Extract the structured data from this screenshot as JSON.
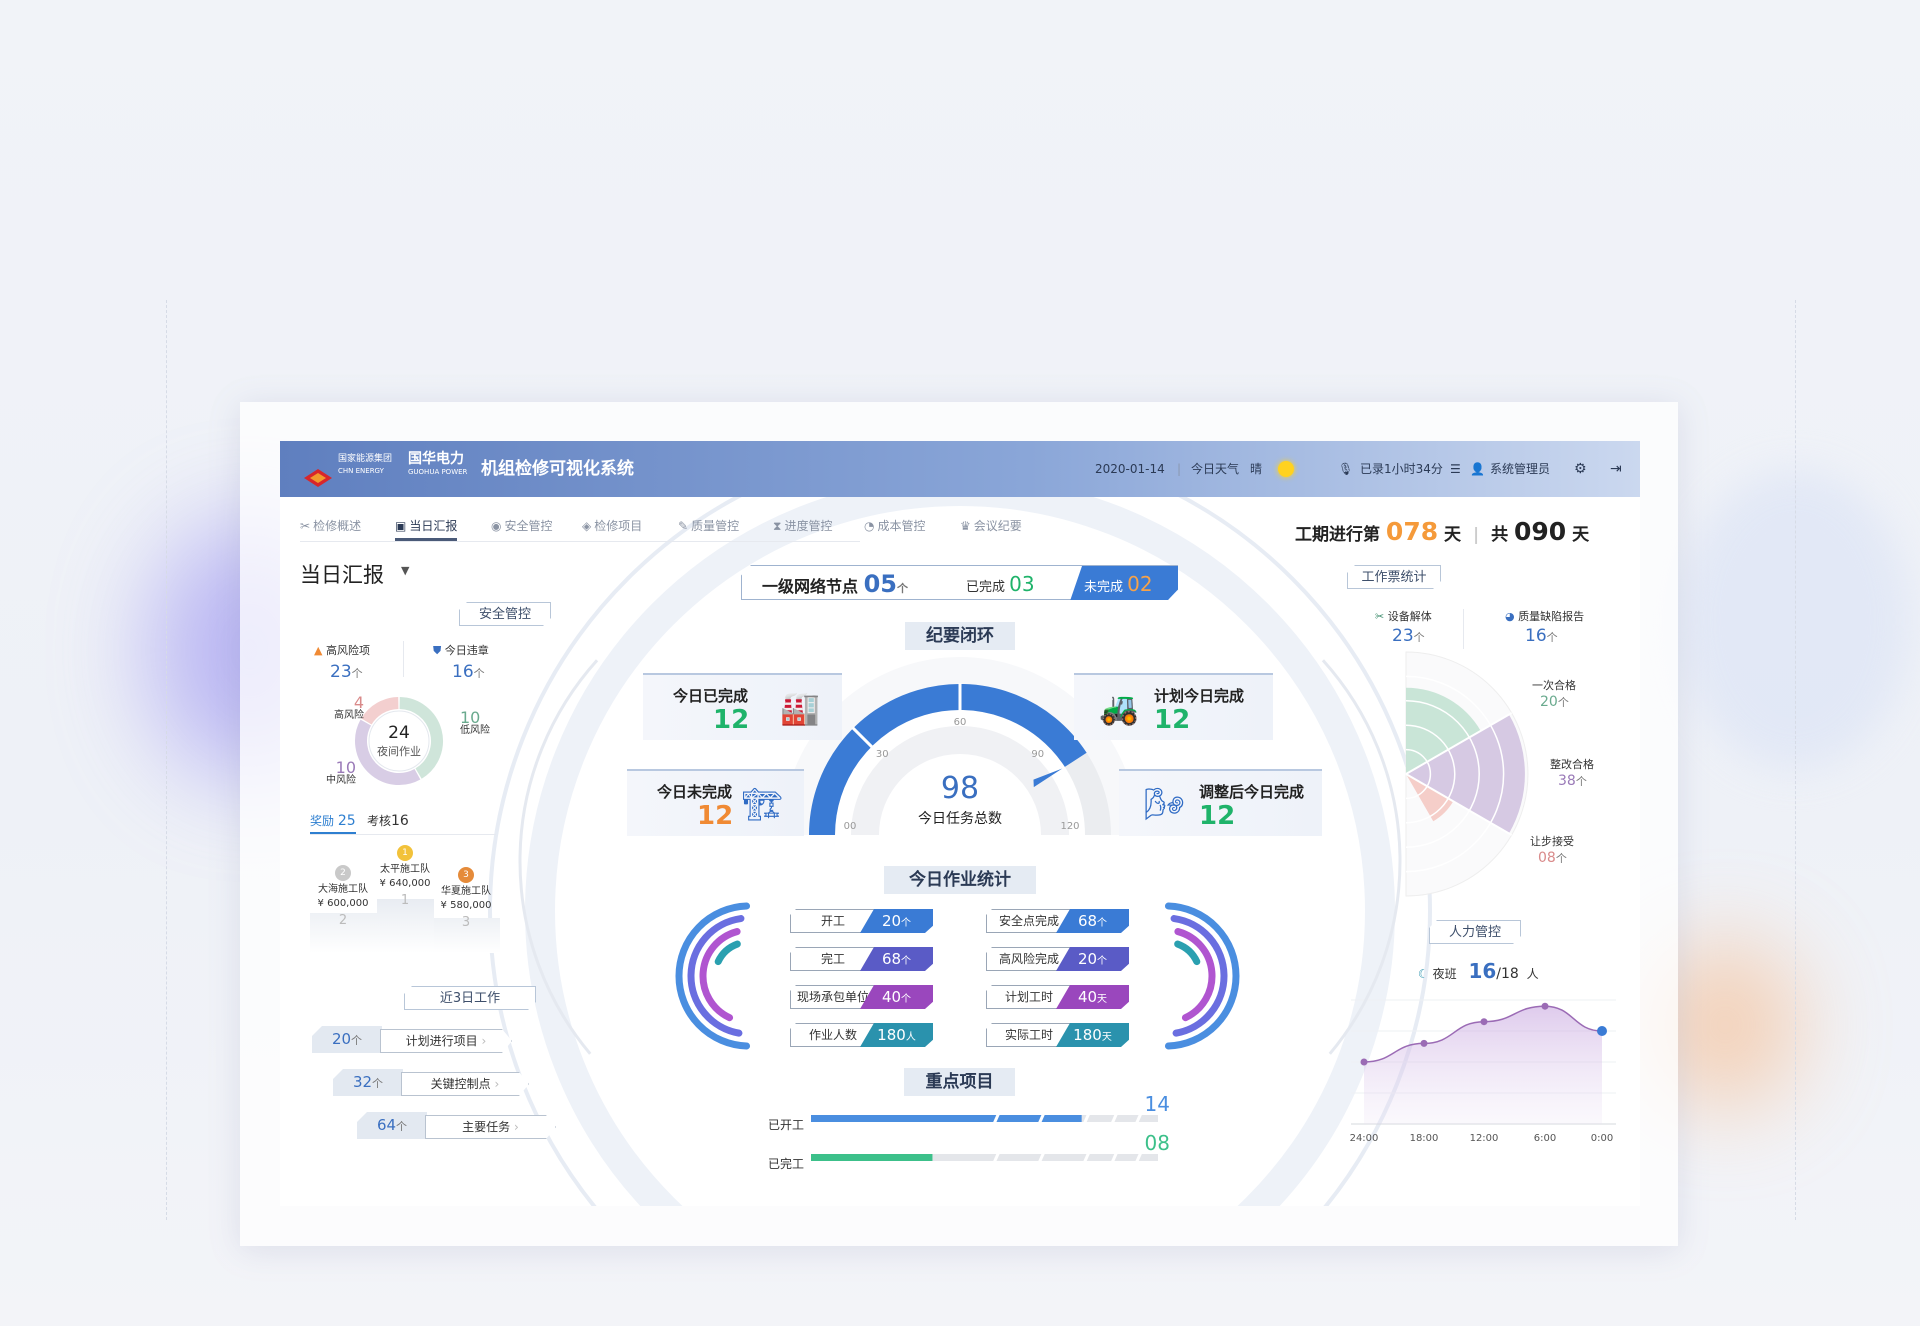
{
  "header": {
    "org_cn": "国家能源集团",
    "org_en": "CHN ENERGY",
    "brand_cn": "国华电力",
    "brand_en": "GUOHUA POWER",
    "title": "机组检修可视化系统",
    "date": "2020-01-14",
    "weather_label": "今日天气",
    "weather": "晴",
    "weather_icon": "sun-icon",
    "recording": "已录1小时34分",
    "user": "系统管理员"
  },
  "nav": {
    "tabs": [
      {
        "label": "检修概述",
        "icon": "✂",
        "active": false
      },
      {
        "label": "当日汇报",
        "icon": "▣",
        "active": true
      },
      {
        "label": "安全管控",
        "icon": "◉",
        "active": false
      },
      {
        "label": "检修项目",
        "icon": "◈",
        "active": false
      },
      {
        "label": "质量管控",
        "icon": "✎",
        "active": false
      },
      {
        "label": "进度管控",
        "icon": "⧗",
        "active": false
      },
      {
        "label": "成本管控",
        "icon": "◔",
        "active": false
      },
      {
        "label": "会议纪要",
        "icon": "♛",
        "active": false
      }
    ]
  },
  "period": {
    "prefix": "工期进行第",
    "current": "078",
    "unit": "天",
    "total_prefix": "共",
    "total": "090",
    "total_unit": "天"
  },
  "left": {
    "title": "当日汇报",
    "safety": {
      "tag": "安全管控",
      "high_risk": {
        "label": "高风险项",
        "value": "23",
        "unit": "个"
      },
      "violations": {
        "label": "今日违章",
        "value": "16",
        "unit": "个"
      },
      "donut": {
        "center_value": "24",
        "center_label": "夜间作业",
        "segments": [
          {
            "label": "低风险",
            "value": 10,
            "color": "#cfe5da",
            "text_color": "#6aaa8e"
          },
          {
            "label": "中风险",
            "value": 10,
            "color": "#d8cde5",
            "text_color": "#9a7ab8"
          },
          {
            "label": "高风险",
            "value": 4,
            "color": "#f3cfcf",
            "text_color": "#d98a8a"
          }
        ]
      }
    },
    "rewards": {
      "tab_reward": "奖励",
      "reward_count": "25",
      "tab_assess": "考核",
      "assess_count": "16",
      "podium": [
        {
          "rank": "2",
          "team": "大海施工队",
          "amount": "¥ 600,000",
          "medal_color": "#c9c9c9"
        },
        {
          "rank": "1",
          "team": "太平施工队",
          "amount": "¥ 640,000",
          "medal_color": "#f2c23a"
        },
        {
          "rank": "3",
          "team": "华夏施工队",
          "amount": "¥ 580,000",
          "medal_color": "#e58b3a"
        }
      ]
    },
    "recent": {
      "tag": "近3日工作",
      "rows": [
        {
          "value": "20",
          "unit": "个",
          "label": "计划进行项目"
        },
        {
          "value": "32",
          "unit": "个",
          "label": "关键控制点"
        },
        {
          "value": "64",
          "unit": "个",
          "label": "主要任务"
        }
      ]
    }
  },
  "center": {
    "nodes": {
      "label": "一级网络节点",
      "value": "05",
      "unit": "个",
      "done_label": "已完成",
      "done": "03",
      "undone_label": "未完成",
      "undone": "02"
    },
    "minutes": {
      "title": "纪要闭环",
      "cards": [
        {
          "label": "今日已完成",
          "value": "12",
          "color": "#1fb36a",
          "icon": "factory-icon"
        },
        {
          "label": "今日未完成",
          "value": "12",
          "color": "#f08a34",
          "icon": "crane-icon"
        },
        {
          "label": "计划今日完成",
          "value": "12",
          "color": "#1fb36a",
          "icon": "excavator-icon"
        },
        {
          "label": "调整后今日完成",
          "value": "12",
          "color": "#1fb36a",
          "icon": "wind-turbine-icon"
        }
      ]
    },
    "gauge": {
      "value": 98,
      "value_text": "98",
      "label": "今日任务总数",
      "min": 0,
      "max": 120,
      "ticks": [
        "00",
        "30",
        "60",
        "90",
        "120"
      ],
      "color": "#3a7bd5"
    },
    "stats": {
      "title": "今日作业统计",
      "left": [
        {
          "label": "开工",
          "value": "20",
          "unit": "个",
          "color": "#3a7bd5"
        },
        {
          "label": "完工",
          "value": "68",
          "unit": "个",
          "color": "#5a5bc6"
        },
        {
          "label": "现场承包单位",
          "value": "40",
          "unit": "个",
          "color": "#9a47bd"
        },
        {
          "label": "作业人数",
          "value": "180",
          "unit": "人",
          "color": "#2a92ad"
        }
      ],
      "right": [
        {
          "label": "安全点完成",
          "value": "68",
          "unit": "个",
          "color": "#3a7bd5"
        },
        {
          "label": "高风险完成",
          "value": "20",
          "unit": "个",
          "color": "#5a5bc6"
        },
        {
          "label": "计划工时",
          "value": "40",
          "unit": "天",
          "color": "#9a47bd"
        },
        {
          "label": "实际工时",
          "value": "180",
          "unit": "天",
          "color": "#2a92ad"
        }
      ]
    },
    "key_projects": {
      "title": "重点项目",
      "rows": [
        {
          "label": "已开工",
          "value": "14",
          "fraction": 0.78,
          "color": "#4a8ee0"
        },
        {
          "label": "已完工",
          "value": "08",
          "fraction": 0.35,
          "color": "#3cc08a"
        }
      ]
    }
  },
  "right": {
    "tickets": {
      "tag": "工作票统计",
      "disassembly": {
        "label": "设备解体",
        "value": "23",
        "unit": "个"
      },
      "defects": {
        "label": "质量缺陷报告",
        "value": "16",
        "unit": "个"
      },
      "polar": [
        {
          "label": "一次合格",
          "value": 20,
          "value_text": "20",
          "unit": "个",
          "color": "#bfe0d0",
          "text_color": "#6aaa8e"
        },
        {
          "label": "整改合格",
          "value": 38,
          "value_text": "38",
          "unit": "个",
          "color": "#cfc0de",
          "text_color": "#9a7ab8"
        },
        {
          "label": "让步接受",
          "value": 8,
          "value_text": "08",
          "unit": "个",
          "color": "#f3c6c0",
          "text_color": "#d98a8a"
        }
      ]
    },
    "manpower": {
      "tag": "人力管控",
      "shift": "夜班",
      "current": "16",
      "total": "/18",
      "unit": "人",
      "chart_data": {
        "type": "area",
        "categories": [
          "24:00",
          "18:00",
          "12:00",
          "6:00",
          "0:00"
        ],
        "values": [
          2.0,
          2.6,
          3.3,
          3.8,
          3.0
        ],
        "ylim": [
          0,
          4
        ],
        "grid": true,
        "color": "#9b6bb5"
      }
    }
  }
}
